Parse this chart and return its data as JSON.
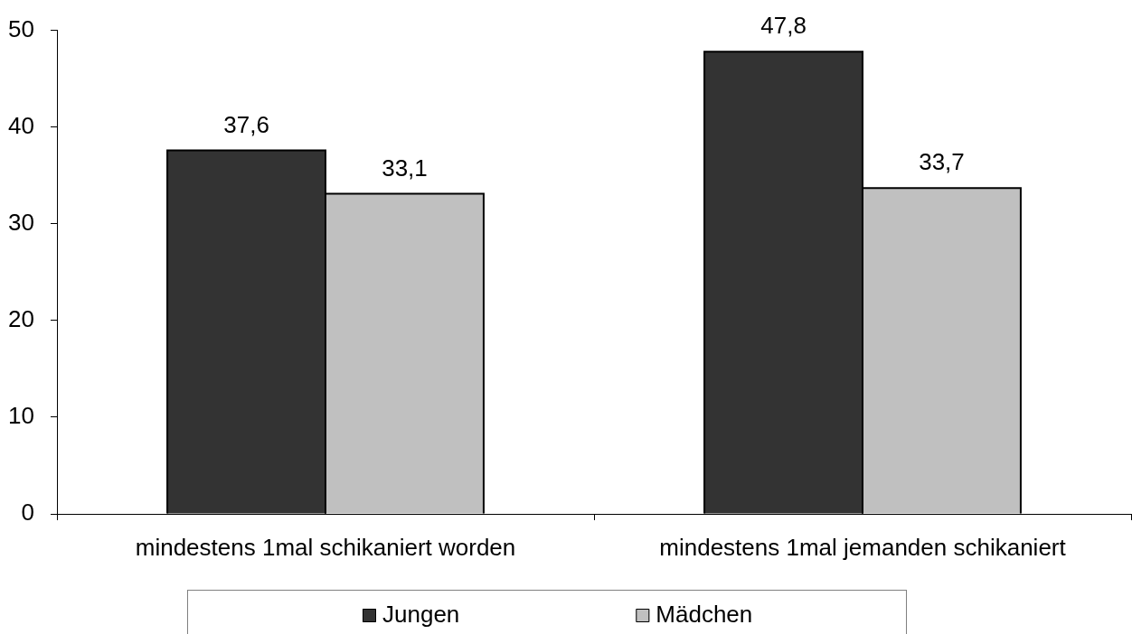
{
  "chart_data": {
    "type": "bar",
    "categories": [
      "mindestens 1mal schikaniert worden",
      "mindestens 1mal jemanden schikaniert"
    ],
    "series": [
      {
        "name": "Jungen",
        "color": "#333333",
        "values": [
          37.6,
          47.8
        ],
        "value_labels": [
          "37,6",
          "47,8"
        ]
      },
      {
        "name": "Mädchen",
        "color": "#c0c0c0",
        "values": [
          33.1,
          33.7
        ],
        "value_labels": [
          "33,1",
          "33,7"
        ]
      }
    ],
    "ylim": [
      0,
      50
    ],
    "yticks": [
      0,
      10,
      20,
      30,
      40,
      50
    ],
    "legend": "bottom"
  }
}
